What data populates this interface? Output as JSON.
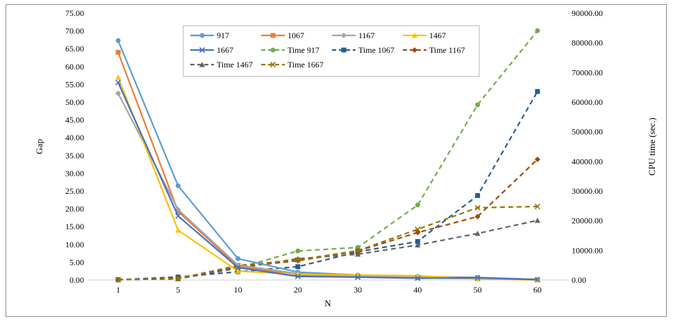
{
  "chart_data": {
    "type": "line",
    "title": "",
    "xlabel": "N",
    "ylabel": "Gap",
    "y2label": "CPU time (sec.)",
    "categories": [
      "1",
      "5",
      "10",
      "20",
      "30",
      "40",
      "50",
      "60"
    ],
    "ylim": [
      0,
      75
    ],
    "y_ticks": [
      "0.00",
      "5.00",
      "10.00",
      "15.00",
      "20.00",
      "25.00",
      "30.00",
      "35.00",
      "40.00",
      "45.00",
      "50.00",
      "55.00",
      "60.00",
      "65.00",
      "70.00",
      "75.00"
    ],
    "y2lim": [
      0,
      90000
    ],
    "y2_ticks": [
      "0.00",
      "10000.00",
      "20000.00",
      "30000.00",
      "40000.00",
      "50000.00",
      "60000.00",
      "70000.00",
      "80000.00",
      "90000.00"
    ],
    "grid": false,
    "legend_position": "top-center",
    "series": [
      {
        "name": "917",
        "axis": "left",
        "color": "#5B9BD5",
        "dash": "solid",
        "marker": "circle",
        "values": [
          67.3,
          26.5,
          6.0,
          2.2,
          1.4,
          1.0,
          0.7,
          0.2
        ]
      },
      {
        "name": "1067",
        "axis": "left",
        "color": "#ED7D31",
        "dash": "solid",
        "marker": "square",
        "values": [
          64.0,
          19.3,
          3.8,
          1.4,
          1.0,
          0.6,
          0.4,
          0.1
        ]
      },
      {
        "name": "1167",
        "axis": "left",
        "color": "#A5A5A5",
        "dash": "solid",
        "marker": "diamond",
        "values": [
          52.5,
          19.8,
          4.2,
          1.8,
          1.2,
          0.8,
          0.5,
          0.2
        ]
      },
      {
        "name": "1467",
        "axis": "left",
        "color": "#FFC000",
        "dash": "solid",
        "marker": "triangle",
        "values": [
          57.0,
          14.0,
          2.5,
          1.6,
          1.4,
          1.2,
          0.3,
          0.0
        ]
      },
      {
        "name": "1667",
        "axis": "left",
        "color": "#4472C4",
        "dash": "solid",
        "marker": "x",
        "values": [
          55.5,
          18.0,
          3.5,
          1.0,
          0.8,
          0.5,
          0.6,
          0.1
        ]
      },
      {
        "name": "Time 917",
        "axis": "right",
        "color": "#70AD47",
        "dash": "dashed",
        "marker": "circle",
        "values": [
          100,
          700,
          4000,
          9800,
          11000,
          25300,
          59100,
          84100
        ]
      },
      {
        "name": "Time 1067",
        "axis": "right",
        "color": "#255E91",
        "dash": "dashed",
        "marker": "square",
        "values": [
          100,
          1000,
          2800,
          4500,
          9500,
          13000,
          28500,
          63600
        ]
      },
      {
        "name": "Time 1167",
        "axis": "right",
        "color": "#9E480E",
        "dash": "dashed",
        "marker": "diamond",
        "values": [
          100,
          500,
          4400,
          6500,
          9800,
          16000,
          21400,
          40700
        ]
      },
      {
        "name": "Time 1467",
        "axis": "right",
        "color": "#636363",
        "dash": "dashed",
        "marker": "triangle",
        "values": [
          100,
          400,
          4000,
          7200,
          8700,
          11800,
          15700,
          20100
        ]
      },
      {
        "name": "Time 1667",
        "axis": "right",
        "color": "#997300",
        "dash": "dashed",
        "marker": "x",
        "values": [
          100,
          500,
          4900,
          6800,
          9900,
          17100,
          24400,
          24800
        ]
      }
    ]
  }
}
